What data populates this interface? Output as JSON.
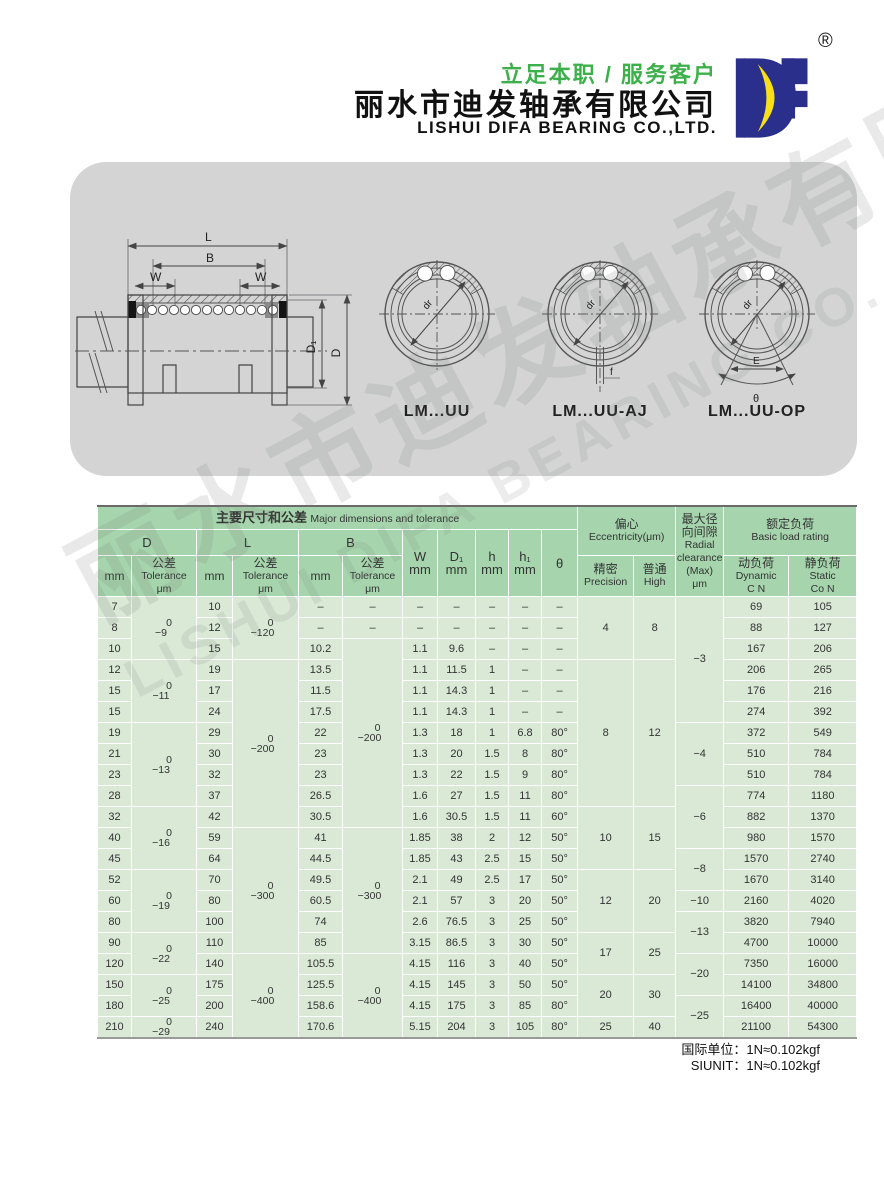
{
  "brand": {
    "slogan": "立足本职 / 服务客户",
    "company_cn": "丽水市迪发轴承有限公司",
    "company_en": "LISHUI DIFA BEARING CO.,LTD.",
    "logo_text": "DF",
    "registered_mark": "®",
    "colors": {
      "slogan_green": "#3db04b",
      "logo_blue": "#2a2f8c",
      "logo_yellow": "#f7e017",
      "table_header_green": "#a6d5ad",
      "table_body_green": "#d9e9d6",
      "panel_gray": "#d4d4d5"
    }
  },
  "watermark": {
    "line1": "丽水市迪发轴承有限公司",
    "line2": "LISHUI DIFA BEARING CO.,LTD."
  },
  "diagram": {
    "dim_labels": {
      "L": "L",
      "B": "B",
      "W": "W",
      "D1": "D₁",
      "D": "D",
      "dr": "dr",
      "f": "f",
      "E": "E",
      "theta": "θ"
    },
    "variants": [
      {
        "label": "LM...UU",
        "type": "plain"
      },
      {
        "label": "LM...UU-AJ",
        "type": "aj"
      },
      {
        "label": "LM...UU-OP",
        "type": "op"
      }
    ]
  },
  "table": {
    "header": {
      "title_cn": "主要尺寸和公差",
      "title_en": "Major dimensions and tolerance",
      "d": "D",
      "l": "L",
      "b": "B",
      "mm": "mm",
      "tol": [
        "公差",
        "Tolerance",
        "μm"
      ],
      "w": "W",
      "d1": "D₁",
      "h": "h",
      "h1": "h₁",
      "theta": "θ",
      "ecc": [
        "偏心",
        "Eccentricity(μm)"
      ],
      "precision": [
        "精密",
        "Precision"
      ],
      "high": [
        "普通",
        "High"
      ],
      "radial": [
        "最大径",
        "向间隙",
        "Radial",
        "clearance",
        "(Max)",
        "μm"
      ],
      "load": [
        "额定负荷",
        "Basic load rating"
      ],
      "dynamic": [
        "动负荷",
        "Dynamic",
        "C N"
      ],
      "static": [
        "静负荷",
        "Static",
        "Co N"
      ]
    },
    "rows": [
      {
        "d": "7",
        "l": "10",
        "b": "–",
        "w": "–",
        "d1": "–",
        "h": "–",
        "h1": "–",
        "theta": "–",
        "c": "69",
        "co": "105"
      },
      {
        "d": "8",
        "l": "12",
        "b": "–",
        "w": "–",
        "d1": "–",
        "h": "–",
        "h1": "–",
        "theta": "–",
        "c": "88",
        "co": "127"
      },
      {
        "d": "10",
        "l": "15",
        "b": "10.2",
        "w": "1.1",
        "d1": "9.6",
        "h": "–",
        "h1": "–",
        "theta": "–",
        "c": "167",
        "co": "206"
      },
      {
        "d": "12",
        "l": "19",
        "b": "13.5",
        "w": "1.1",
        "d1": "11.5",
        "h": "1",
        "h1": "–",
        "theta": "–",
        "c": "206",
        "co": "265"
      },
      {
        "d": "15",
        "l": "17",
        "b": "11.5",
        "w": "1.1",
        "d1": "14.3",
        "h": "1",
        "h1": "–",
        "theta": "–",
        "c": "176",
        "co": "216"
      },
      {
        "d": "15",
        "l": "24",
        "b": "17.5",
        "w": "1.1",
        "d1": "14.3",
        "h": "1",
        "h1": "–",
        "theta": "–",
        "c": "274",
        "co": "392"
      },
      {
        "d": "19",
        "l": "29",
        "b": "22",
        "w": "1.3",
        "d1": "18",
        "h": "1",
        "h1": "6.8",
        "theta": "80°",
        "c": "372",
        "co": "549"
      },
      {
        "d": "21",
        "l": "30",
        "b": "23",
        "w": "1.3",
        "d1": "20",
        "h": "1.5",
        "h1": "8",
        "theta": "80°",
        "c": "510",
        "co": "784"
      },
      {
        "d": "23",
        "l": "32",
        "b": "23",
        "w": "1.3",
        "d1": "22",
        "h": "1.5",
        "h1": "9",
        "theta": "80°",
        "c": "510",
        "co": "784"
      },
      {
        "d": "28",
        "l": "37",
        "b": "26.5",
        "w": "1.6",
        "d1": "27",
        "h": "1.5",
        "h1": "11",
        "theta": "80°",
        "c": "774",
        "co": "1180"
      },
      {
        "d": "32",
        "l": "42",
        "b": "30.5",
        "w": "1.6",
        "d1": "30.5",
        "h": "1.5",
        "h1": "11",
        "theta": "60°",
        "c": "882",
        "co": "1370"
      },
      {
        "d": "40",
        "l": "59",
        "b": "41",
        "w": "1.85",
        "d1": "38",
        "h": "2",
        "h1": "12",
        "theta": "50°",
        "c": "980",
        "co": "1570"
      },
      {
        "d": "45",
        "l": "64",
        "b": "44.5",
        "w": "1.85",
        "d1": "43",
        "h": "2.5",
        "h1": "15",
        "theta": "50°",
        "c": "1570",
        "co": "2740"
      },
      {
        "d": "52",
        "l": "70",
        "b": "49.5",
        "w": "2.1",
        "d1": "49",
        "h": "2.5",
        "h1": "17",
        "theta": "50°",
        "c": "1670",
        "co": "3140"
      },
      {
        "d": "60",
        "l": "80",
        "b": "60.5",
        "w": "2.1",
        "d1": "57",
        "h": "3",
        "h1": "20",
        "theta": "50°",
        "c": "2160",
        "co": "4020"
      },
      {
        "d": "80",
        "l": "100",
        "b": "74",
        "w": "2.6",
        "d1": "76.5",
        "h": "3",
        "h1": "25",
        "theta": "50°",
        "c": "3820",
        "co": "7940"
      },
      {
        "d": "90",
        "l": "110",
        "b": "85",
        "w": "3.15",
        "d1": "86.5",
        "h": "3",
        "h1": "30",
        "theta": "50°",
        "c": "4700",
        "co": "10000"
      },
      {
        "d": "120",
        "l": "140",
        "b": "105.5",
        "w": "4.15",
        "d1": "116",
        "h": "3",
        "h1": "40",
        "theta": "50°",
        "c": "7350",
        "co": "16000"
      },
      {
        "d": "150",
        "l": "175",
        "b": "125.5",
        "w": "4.15",
        "d1": "145",
        "h": "3",
        "h1": "50",
        "theta": "50°",
        "c": "14100",
        "co": "34800"
      },
      {
        "d": "180",
        "l": "200",
        "b": "158.6",
        "w": "4.15",
        "d1": "175",
        "h": "3",
        "h1": "85",
        "theta": "80°",
        "c": "16400",
        "co": "40000"
      },
      {
        "d": "210",
        "l": "240",
        "b": "170.6",
        "w": "5.15",
        "d1": "204",
        "h": "3",
        "h1": "105",
        "theta": "80°",
        "c": "21100",
        "co": "54300"
      }
    ],
    "d_tol": [
      {
        "lines": [
          "0",
          "−9"
        ],
        "span": 3
      },
      {
        "lines": [
          "0",
          "−11"
        ],
        "span": 3
      },
      {
        "lines": [
          "0",
          "−13"
        ],
        "span": 4
      },
      {
        "lines": [
          "0",
          "−16"
        ],
        "span": 3
      },
      {
        "lines": [
          "0",
          "−19"
        ],
        "span": 3
      },
      {
        "lines": [
          "0",
          "−22"
        ],
        "span": 2
      },
      {
        "lines": [
          "0",
          "−25"
        ],
        "span": 2
      },
      {
        "lines": [
          "0",
          "−29"
        ],
        "span": 1
      }
    ],
    "l_tol": [
      {
        "lines": [
          "0",
          "−120"
        ],
        "span": 3
      },
      {
        "lines": [
          "0",
          "−200"
        ],
        "span": 8
      },
      {
        "lines": [
          "0",
          "−300"
        ],
        "span": 6
      },
      {
        "lines": [
          "0",
          "−400"
        ],
        "span": 4
      }
    ],
    "b_tol": [
      {
        "lines": [
          "–"
        ],
        "span": 1
      },
      {
        "lines": [
          "–"
        ],
        "span": 1
      },
      {
        "lines": [
          "0",
          "−200"
        ],
        "span": 9
      },
      {
        "lines": [
          "0",
          "−300"
        ],
        "span": 6
      },
      {
        "lines": [
          "0",
          "−400"
        ],
        "span": 4
      }
    ],
    "ecc_groups": [
      {
        "precision": "4",
        "high": "8",
        "span": 3
      },
      {
        "precision": "8",
        "high": "12",
        "span": 7
      },
      {
        "precision": "10",
        "high": "15",
        "span": 3
      },
      {
        "precision": "12",
        "high": "20",
        "span": 3
      },
      {
        "precision": "17",
        "high": "25",
        "span": 2
      },
      {
        "precision": "20",
        "high": "30",
        "span": 2
      },
      {
        "precision": "25",
        "high": "40",
        "span": 1
      }
    ],
    "radial_groups": [
      {
        "v": "−3",
        "span": 6
      },
      {
        "v": "−4",
        "span": 3
      },
      {
        "v": "−6",
        "span": 3
      },
      {
        "v": "−8",
        "span": 2
      },
      {
        "v": "−10",
        "span": 1
      },
      {
        "v": "−13",
        "span": 2
      },
      {
        "v": "−20",
        "span": 2
      },
      {
        "v": "−25",
        "span": 2
      }
    ]
  },
  "footer": {
    "line1": "国际单位：1N≈0.102kgf",
    "line2": "SIUNIT：1N≈0.102kgf"
  }
}
